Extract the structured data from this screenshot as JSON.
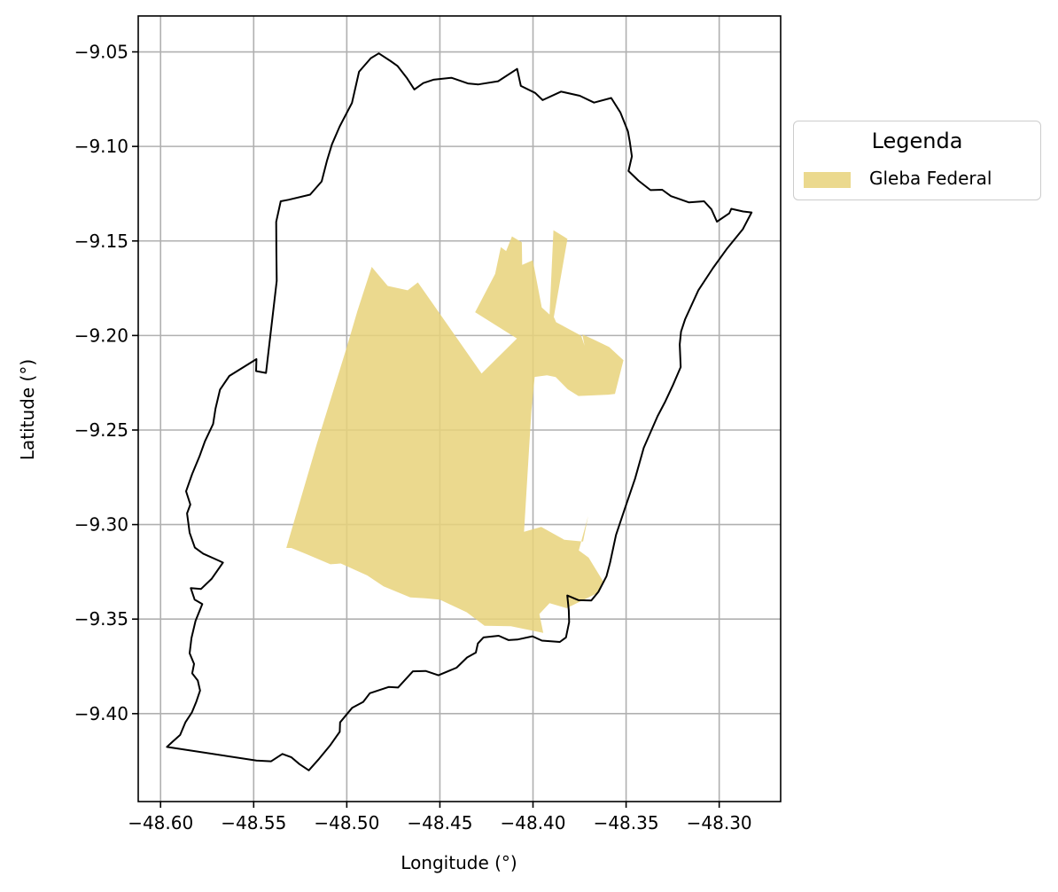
{
  "chart_data": {
    "type": "map",
    "xlabel": "Longitude (°)",
    "ylabel": "Latitude (°)",
    "xlim": [
      -48.612,
      -48.267
    ],
    "ylim": [
      -9.4465,
      -9.031
    ],
    "xticks": [
      -48.6,
      -48.55,
      -48.5,
      -48.45,
      -48.4,
      -48.35,
      -48.3
    ],
    "xtick_labels": [
      "−48.60",
      "−48.55",
      "−48.50",
      "−48.45",
      "−48.40",
      "−48.35",
      "−48.30"
    ],
    "yticks": [
      -9.05,
      -9.1,
      -9.15,
      -9.2,
      -9.25,
      -9.3,
      -9.35,
      -9.4
    ],
    "ytick_labels": [
      "−9.05",
      "−9.10",
      "−9.15",
      "−9.20",
      "−9.25",
      "−9.30",
      "−9.35",
      "−9.40"
    ],
    "grid": true,
    "legend": {
      "title": "Legenda",
      "placement": "outside right, upper",
      "entries": [
        {
          "label": "Gleba Federal",
          "color": "#e8d27a",
          "opacity": 0.85
        }
      ]
    },
    "boundary": {
      "stroke": "#000000",
      "coordinates": [
        [
          -48.5966,
          -9.4176
        ],
        [
          -48.5938,
          -9.4151
        ],
        [
          -48.5895,
          -9.4113
        ],
        [
          -48.5867,
          -9.4046
        ],
        [
          -48.5832,
          -9.3994
        ],
        [
          -48.5808,
          -9.3936
        ],
        [
          -48.5788,
          -9.3878
        ],
        [
          -48.58,
          -9.3825
        ],
        [
          -48.583,
          -9.3787
        ],
        [
          -48.582,
          -9.3737
        ],
        [
          -48.5844,
          -9.3681
        ],
        [
          -48.5834,
          -9.36
        ],
        [
          -48.5812,
          -9.3509
        ],
        [
          -48.5776,
          -9.342
        ],
        [
          -48.5817,
          -9.3397
        ],
        [
          -48.5838,
          -9.3336
        ],
        [
          -48.5783,
          -9.3341
        ],
        [
          -48.5725,
          -9.3286
        ],
        [
          -48.5665,
          -9.3201
        ],
        [
          -48.5685,
          -9.3192
        ],
        [
          -48.5771,
          -9.3154
        ],
        [
          -48.5816,
          -9.3122
        ],
        [
          -48.5844,
          -9.3043
        ],
        [
          -48.5858,
          -9.2941
        ],
        [
          -48.584,
          -9.2894
        ],
        [
          -48.5863,
          -9.2824
        ],
        [
          -48.583,
          -9.2732
        ],
        [
          -48.5791,
          -9.264
        ],
        [
          -48.5761,
          -9.2558
        ],
        [
          -48.5718,
          -9.2468
        ],
        [
          -48.5705,
          -9.2387
        ],
        [
          -48.5681,
          -9.2286
        ],
        [
          -48.5631,
          -9.2214
        ],
        [
          -48.5485,
          -9.2125
        ],
        [
          -48.5487,
          -9.2188
        ],
        [
          -48.5434,
          -9.2198
        ],
        [
          -48.5376,
          -9.1711
        ],
        [
          -48.5378,
          -9.1555
        ],
        [
          -48.5379,
          -9.1399
        ],
        [
          -48.5355,
          -9.129
        ],
        [
          -48.5313,
          -9.1282
        ],
        [
          -48.5197,
          -9.1255
        ],
        [
          -48.5135,
          -9.1185
        ],
        [
          -48.5106,
          -9.1074
        ],
        [
          -48.508,
          -9.0989
        ],
        [
          -48.5038,
          -9.0894
        ],
        [
          -48.4972,
          -9.077
        ],
        [
          -48.4934,
          -9.0605
        ],
        [
          -48.4871,
          -9.0533
        ],
        [
          -48.4828,
          -9.0508
        ],
        [
          -48.4764,
          -9.0549
        ],
        [
          -48.4728,
          -9.0574
        ],
        [
          -48.4678,
          -9.0637
        ],
        [
          -48.4637,
          -9.0699
        ],
        [
          -48.4589,
          -9.0665
        ],
        [
          -48.4535,
          -9.0647
        ],
        [
          -48.4438,
          -9.0637
        ],
        [
          -48.435,
          -9.0667
        ],
        [
          -48.4293,
          -9.0672
        ],
        [
          -48.4187,
          -9.0655
        ],
        [
          -48.4085,
          -9.059
        ],
        [
          -48.4065,
          -9.068
        ],
        [
          -48.3988,
          -9.0717
        ],
        [
          -48.3948,
          -9.0755
        ],
        [
          -48.3849,
          -9.071
        ],
        [
          -48.3749,
          -9.0732
        ],
        [
          -48.3672,
          -9.0768
        ],
        [
          -48.358,
          -9.0744
        ],
        [
          -48.3531,
          -9.082
        ],
        [
          -48.349,
          -9.0921
        ],
        [
          -48.348,
          -9.0977
        ],
        [
          -48.3469,
          -9.1053
        ],
        [
          -48.3487,
          -9.113
        ],
        [
          -48.3433,
          -9.1182
        ],
        [
          -48.3369,
          -9.1231
        ],
        [
          -48.3306,
          -9.1229
        ],
        [
          -48.3259,
          -9.1263
        ],
        [
          -48.3162,
          -9.1296
        ],
        [
          -48.3081,
          -9.129
        ],
        [
          -48.3042,
          -9.1332
        ],
        [
          -48.3012,
          -9.1398
        ],
        [
          -48.2946,
          -9.1354
        ],
        [
          -48.2935,
          -9.133
        ],
        [
          -48.2872,
          -9.1344
        ],
        [
          -48.2826,
          -9.1349
        ],
        [
          -48.2873,
          -9.1438
        ],
        [
          -48.2957,
          -9.1539
        ],
        [
          -48.3034,
          -9.1644
        ],
        [
          -48.3112,
          -9.1761
        ],
        [
          -48.3183,
          -9.1914
        ],
        [
          -48.3205,
          -9.1979
        ],
        [
          -48.3212,
          -9.2047
        ],
        [
          -48.3207,
          -9.2167
        ],
        [
          -48.3248,
          -9.2262
        ],
        [
          -48.3289,
          -9.2348
        ],
        [
          -48.3331,
          -9.2427
        ],
        [
          -48.3405,
          -9.2594
        ],
        [
          -48.3452,
          -9.2757
        ],
        [
          -48.351,
          -9.2925
        ],
        [
          -48.3554,
          -9.3055
        ],
        [
          -48.3586,
          -9.3201
        ],
        [
          -48.3605,
          -9.3273
        ],
        [
          -48.3649,
          -9.3356
        ],
        [
          -48.3687,
          -9.3402
        ],
        [
          -48.3755,
          -9.34
        ],
        [
          -48.3816,
          -9.3375
        ],
        [
          -48.3808,
          -9.3453
        ],
        [
          -48.3806,
          -9.3516
        ],
        [
          -48.3823,
          -9.3597
        ],
        [
          -48.3856,
          -9.3621
        ],
        [
          -48.3952,
          -9.3614
        ],
        [
          -48.4003,
          -9.3591
        ],
        [
          -48.4084,
          -9.3608
        ],
        [
          -48.4131,
          -9.3611
        ],
        [
          -48.4184,
          -9.3588
        ],
        [
          -48.4266,
          -9.3597
        ],
        [
          -48.4296,
          -9.3629
        ],
        [
          -48.4307,
          -9.3677
        ],
        [
          -48.4354,
          -9.3703
        ],
        [
          -48.441,
          -9.3757
        ],
        [
          -48.4508,
          -9.3797
        ],
        [
          -48.4577,
          -9.3774
        ],
        [
          -48.4645,
          -9.3776
        ],
        [
          -48.4725,
          -9.3862
        ],
        [
          -48.4775,
          -9.3859
        ],
        [
          -48.4876,
          -9.3892
        ],
        [
          -48.4912,
          -9.3938
        ],
        [
          -48.4971,
          -9.3969
        ],
        [
          -48.5036,
          -9.4046
        ],
        [
          -48.5038,
          -9.4096
        ],
        [
          -48.5088,
          -9.4166
        ],
        [
          -48.5149,
          -9.4239
        ],
        [
          -48.5204,
          -9.43
        ],
        [
          -48.5254,
          -9.4267
        ],
        [
          -48.5297,
          -9.4231
        ],
        [
          -48.5346,
          -9.4213
        ],
        [
          -48.5406,
          -9.4252
        ],
        [
          -48.5485,
          -9.4248
        ],
        [
          -48.5966,
          -9.4176
        ]
      ]
    },
    "features": [
      {
        "name": "Gleba Federal",
        "coordinates": [
          [
            -48.5325,
            -9.3124
          ],
          [
            -48.516,
            -9.2571
          ],
          [
            -48.5,
            -9.2061
          ],
          [
            -48.4943,
            -9.1871
          ],
          [
            -48.4866,
            -9.1637
          ],
          [
            -48.478,
            -9.1738
          ],
          [
            -48.4673,
            -9.1761
          ],
          [
            -48.4618,
            -9.1719
          ],
          [
            -48.4276,
            -9.2201
          ],
          [
            -48.4086,
            -9.2016
          ],
          [
            -48.4311,
            -9.1877
          ],
          [
            -48.4203,
            -9.1674
          ],
          [
            -48.4173,
            -9.1533
          ],
          [
            -48.4144,
            -9.1553
          ],
          [
            -48.4113,
            -9.1476
          ],
          [
            -48.406,
            -9.1507
          ],
          [
            -48.4058,
            -9.1627
          ],
          [
            -48.4001,
            -9.1602
          ],
          [
            -48.3953,
            -9.1852
          ],
          [
            -48.3911,
            -9.1889
          ],
          [
            -48.389,
            -9.1443
          ],
          [
            -48.3815,
            -9.1489
          ],
          [
            -48.3888,
            -9.1902
          ],
          [
            -48.3876,
            -9.193
          ],
          [
            -48.3741,
            -9.2001
          ],
          [
            -48.3723,
            -9.2054
          ],
          [
            -48.3735,
            -9.1994
          ],
          [
            -48.3672,
            -9.2022
          ],
          [
            -48.3591,
            -9.2061
          ],
          [
            -48.3514,
            -9.2131
          ],
          [
            -48.356,
            -9.2309
          ],
          [
            -48.3595,
            -9.2313
          ],
          [
            -48.3756,
            -9.232
          ],
          [
            -48.3813,
            -9.2285
          ],
          [
            -48.3878,
            -9.222
          ],
          [
            -48.3925,
            -9.221
          ],
          [
            -48.3991,
            -9.2219
          ],
          [
            -48.4009,
            -9.2404
          ],
          [
            -48.4048,
            -9.3038
          ],
          [
            -48.3956,
            -9.3012
          ],
          [
            -48.3832,
            -9.308
          ],
          [
            -48.3731,
            -9.309
          ],
          [
            -48.3704,
            -9.2956
          ],
          [
            -48.3754,
            -9.3137
          ],
          [
            -48.3701,
            -9.3175
          ],
          [
            -48.3624,
            -9.3299
          ],
          [
            -48.3655,
            -9.3363
          ],
          [
            -48.3819,
            -9.3442
          ],
          [
            -48.3911,
            -9.3416
          ],
          [
            -48.3966,
            -9.3473
          ],
          [
            -48.3945,
            -9.3573
          ],
          [
            -48.4119,
            -9.3538
          ],
          [
            -48.426,
            -9.3535
          ],
          [
            -48.4356,
            -9.3464
          ],
          [
            -48.45,
            -9.3397
          ],
          [
            -48.4579,
            -9.339
          ],
          [
            -48.4659,
            -9.3385
          ],
          [
            -48.4803,
            -9.3327
          ],
          [
            -48.489,
            -9.3269
          ],
          [
            -48.5032,
            -9.3206
          ],
          [
            -48.5088,
            -9.321
          ],
          [
            -48.5223,
            -9.3154
          ],
          [
            -48.5298,
            -9.3124
          ],
          [
            -48.5325,
            -9.3124
          ]
        ]
      }
    ]
  }
}
